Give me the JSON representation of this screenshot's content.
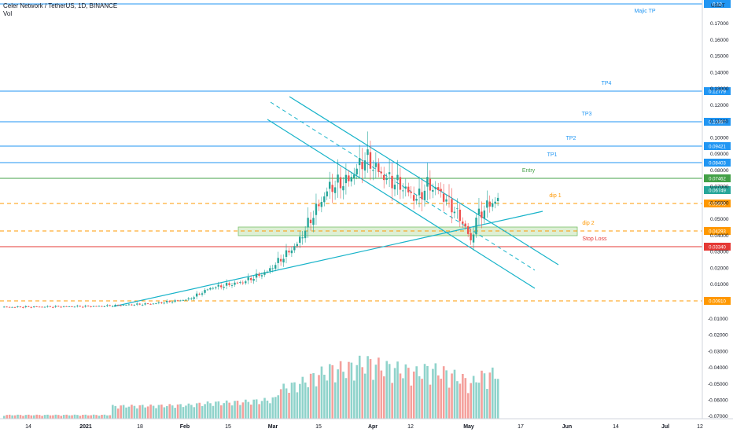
{
  "header": {
    "title": "Celer Network / TetherUS, 1D, BINANCE",
    "sub": "Vol",
    "currency": "USDT"
  },
  "colors": {
    "up": "#26a69a",
    "down": "#ef5350",
    "up_vol": "#8fd3cb",
    "down_vol": "#f4a09c",
    "blue": "#2196f3",
    "green": "#43a047",
    "orange": "#ff9800",
    "red": "#e53935",
    "cyan": "#17b3c9",
    "zone": "#cfe8c2",
    "zone_border": "#7ac06a"
  },
  "price_axis": {
    "ticks": [
      "0.17000",
      "0.16000",
      "0.15000",
      "0.14000",
      "0.13000",
      "0.12000",
      "0.11000",
      "0.10000",
      "0.09000",
      "0.08000",
      "0.07000",
      "0.06000",
      "0.05000",
      "0.04000",
      "0.03000",
      "0.02000",
      "0.01000"
    ],
    "vol_ticks": [
      "-0.01000",
      "-0.02000",
      "-0.03000",
      "-0.04000",
      "-0.05000",
      "-0.06000",
      "-0.07000"
    ]
  },
  "time_axis": {
    "labels": [
      "14",
      "2021",
      "18",
      "Feb",
      "15",
      "Mar",
      "15",
      "Apr",
      "12",
      "May",
      "17",
      "Jun",
      "14",
      "Jul",
      "12"
    ]
  },
  "levels": [
    {
      "label": "Majic TP",
      "tag": "0.18",
      "color_key": "blue",
      "dash": false
    },
    {
      "label": "TP4",
      "tag": "0.12779",
      "color_key": "blue",
      "dash": false
    },
    {
      "label": "TP3",
      "tag": "0.10897",
      "color_key": "blue",
      "dash": false
    },
    {
      "label": "TP2",
      "tag": "0.09421",
      "color_key": "blue",
      "dash": false
    },
    {
      "label": "TP1",
      "tag": "0.08403",
      "color_key": "blue",
      "dash": false
    },
    {
      "label": "Entry",
      "tag": "0.07462",
      "color_key": "green",
      "dash": false
    },
    {
      "label": "dip 1",
      "tag": "0.05946",
      "color_key": "orange",
      "dash": true
    },
    {
      "label": "dip 2",
      "tag": "0.04293",
      "color_key": "orange",
      "dash": true
    },
    {
      "label": "Stop Loss",
      "tag": "0.03340",
      "color_key": "red",
      "dash": false
    },
    {
      "label": "",
      "tag": "0.00910",
      "color_key": "orange",
      "dash": true
    }
  ],
  "current_price": "0.06749",
  "chart_data": {
    "type": "candlestick",
    "title": "Celer Network / TetherUS, 1D, BINANCE",
    "x_range": [
      "2020-12-14",
      "2021-07-18"
    ],
    "y_range": [
      0.0,
      0.18
    ],
    "candles_weekly_summary": [
      {
        "x": "2020-12-14",
        "close": 0.0055
      },
      {
        "x": "2021-01-04",
        "close": 0.0058
      },
      {
        "x": "2021-01-18",
        "close": 0.007
      },
      {
        "x": "2021-02-01",
        "close": 0.01
      },
      {
        "x": "2021-02-15",
        "close": 0.018
      },
      {
        "x": "2021-03-01",
        "close": 0.024
      },
      {
        "x": "2021-03-15",
        "close": 0.05
      },
      {
        "x": "2021-03-22",
        "close": 0.075
      },
      {
        "x": "2021-03-29",
        "close": 0.092
      },
      {
        "x": "2021-04-05",
        "close": 0.078
      },
      {
        "x": "2021-04-12",
        "close": 0.064
      },
      {
        "x": "2021-04-19",
        "close": 0.055
      },
      {
        "x": "2021-04-26",
        "close": 0.066
      }
    ]
  }
}
